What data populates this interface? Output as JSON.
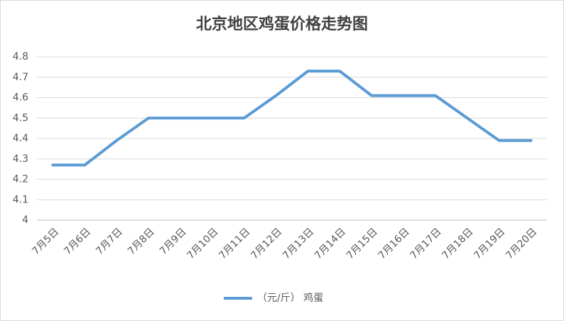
{
  "chart_data": {
    "type": "line",
    "title": "北京地区鸡蛋价格走势图",
    "categories": [
      "7月5日",
      "7月6日",
      "7月7日",
      "7月8日",
      "7月9日",
      "7月10日",
      "7月11日",
      "7月12日",
      "7月13日",
      "7月14日",
      "7月15日",
      "7月16日",
      "7月17日",
      "7月18日",
      "7月19日",
      "7月20日"
    ],
    "series": [
      {
        "name": "（元/斤） 鸡蛋",
        "color": "#5b9bd5",
        "values": [
          4.27,
          4.27,
          4.39,
          4.5,
          4.5,
          4.5,
          4.5,
          4.61,
          4.73,
          4.73,
          4.61,
          4.61,
          4.61,
          4.5,
          4.39,
          4.39
        ]
      }
    ],
    "ylim": [
      4,
      4.8
    ],
    "yticks": [
      4,
      4.1,
      4.2,
      4.3,
      4.4,
      4.5,
      4.6,
      4.7,
      4.8
    ],
    "grid": true,
    "legend": "bottom"
  }
}
